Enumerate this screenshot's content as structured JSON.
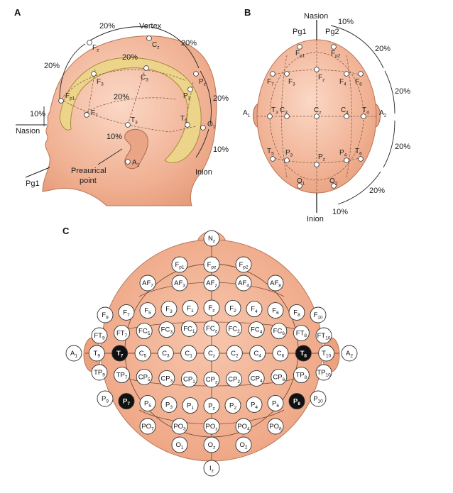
{
  "panels": {
    "a": {
      "letter": "A",
      "vertex": "Vertex",
      "nasion": "Nasion",
      "inion": "Inion",
      "preauricular": [
        "Preaurical",
        "point"
      ],
      "pg1": "Pg1",
      "percent_labels": [
        "20%",
        "20%",
        "20%",
        "20%",
        "20%",
        "20%",
        "10%",
        "10%",
        "10%"
      ],
      "electrodes": [
        "Fp1",
        "F3",
        "F7",
        "C3",
        "Fz",
        "Cz",
        "Pz",
        "P3",
        "T3",
        "T5",
        "O1",
        "A1"
      ]
    },
    "b": {
      "letter": "B",
      "nasion": "Nasion",
      "inion": "Inion",
      "pg1": "Pg1",
      "pg2": "Pg2",
      "percent_labels": [
        "10%",
        "20%",
        "20%",
        "20%",
        "20%",
        "10%"
      ],
      "electrodes": [
        "Fp1",
        "Fp2",
        "F7",
        "F3",
        "Fz",
        "F4",
        "F8",
        "A1",
        "T3",
        "C3",
        "Cz",
        "C4",
        "T4",
        "A2",
        "T5",
        "P3",
        "Pz",
        "P4",
        "T6",
        "O1",
        "O2"
      ]
    },
    "c": {
      "letter": "C",
      "highlight_color": "#111111",
      "head_color": "#f2b79c",
      "rows": [
        [
          "Nz"
        ],
        [
          "Fp1",
          "Fpz",
          "Fp2"
        ],
        [
          "AF7",
          "AF3",
          "AFz",
          "AF4",
          "AF8"
        ],
        [
          "F9",
          "F7",
          "F5",
          "F3",
          "F1",
          "Fz",
          "F2",
          "F4",
          "F6",
          "F8",
          "F10"
        ],
        [
          "FT9",
          "FT7",
          "FC5",
          "FC3",
          "FC1",
          "FCz",
          "FC2",
          "FC4",
          "FC6",
          "FT8",
          "FT10"
        ],
        [
          "A1",
          "T9",
          "T7",
          "C5",
          "C3",
          "C1",
          "Cz",
          "C2",
          "C4",
          "C6",
          "T8",
          "T10",
          "A2"
        ],
        [
          "TP9",
          "TP7",
          "CP5",
          "CP3",
          "CP1",
          "CPz",
          "CP2",
          "CP4",
          "CP6",
          "TP8",
          "TP10"
        ],
        [
          "P9",
          "P7",
          "P5",
          "P3",
          "P1",
          "Pz",
          "P2",
          "P4",
          "P6",
          "P8",
          "P10"
        ],
        [
          "PO7",
          "PO3",
          "POz",
          "PO4",
          "PO8"
        ],
        [
          "O1",
          "Oz",
          "O2"
        ],
        [
          "Iz"
        ]
      ],
      "highlighted": [
        "T7",
        "T8",
        "P7",
        "P8"
      ]
    }
  }
}
